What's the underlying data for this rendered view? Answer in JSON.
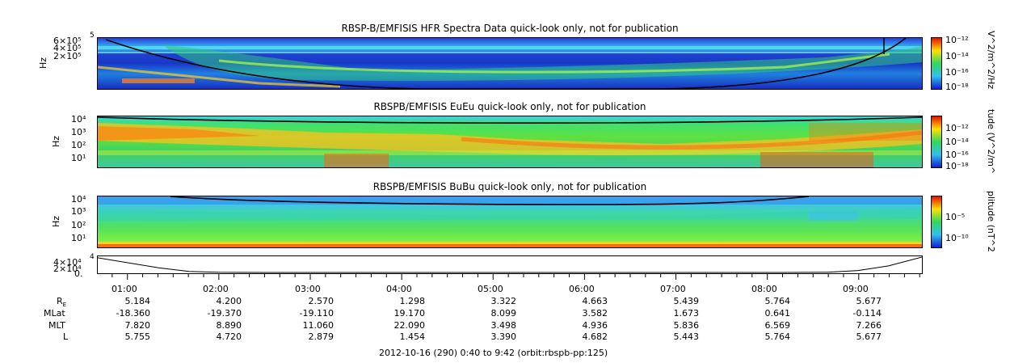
{
  "panels": [
    {
      "title": "RBSP-B/EMFISIS  HFR Spectra Data quick-look only, not for publication",
      "ylabel": "Hz",
      "yticks": [
        "6×10⁵",
        "4×10⁵",
        "2×10⁵"
      ],
      "yticks_top": "5",
      "colorbar_label": "V^2/m^2/Hz",
      "colorbar_ticks": [
        "10⁻¹²",
        "10⁻¹⁴",
        "10⁻¹⁶",
        "10⁻¹⁸"
      ]
    },
    {
      "title": "RBSPB/EMFISIS  EuEu quick-look only, not for publication",
      "ylabel": "Hz",
      "yticks": [
        "10⁴",
        "10³",
        "10²",
        "10¹"
      ],
      "colorbar_label": "tude (V^2/m^",
      "colorbar_ticks": [
        "10⁻¹²",
        "10⁻¹⁴",
        "10⁻¹⁶",
        "10⁻¹⁸"
      ]
    },
    {
      "title": "RBSPB/EMFISIS  BuBu quick-look only, not for publication",
      "ylabel": "Hz",
      "yticks": [
        "10⁴",
        "10³",
        "10²",
        "10¹"
      ],
      "colorbar_label": "plitude (nT^2",
      "colorbar_ticks": [
        "10⁻⁵",
        "10⁻¹⁰"
      ]
    },
    {
      "title": "",
      "ylabel": "",
      "yticks": [
        "4×10⁴",
        "2×10⁴",
        "0."
      ],
      "yticks_top": "4"
    }
  ],
  "ephemeris": {
    "times": [
      "01:00",
      "02:00",
      "03:00",
      "04:00",
      "05:00",
      "06:00",
      "07:00",
      "08:00",
      "09:00"
    ],
    "rows": [
      {
        "label": "R",
        "label_sub": "E",
        "values": [
          "5.184",
          "4.200",
          "2.570",
          "1.298",
          "3.322",
          "4.663",
          "5.439",
          "5.764",
          "5.677"
        ]
      },
      {
        "label": "MLat",
        "values": [
          "-18.360",
          "-19.370",
          "-19.110",
          "19.170",
          "8.099",
          "3.582",
          "1.673",
          "0.641",
          "-0.114"
        ]
      },
      {
        "label": "MLT",
        "values": [
          "7.820",
          "8.890",
          "11.060",
          "22.090",
          "3.498",
          "4.936",
          "5.836",
          "6.569",
          "7.266"
        ]
      },
      {
        "label": "L",
        "values": [
          "5.755",
          "4.720",
          "2.879",
          "1.454",
          "3.390",
          "4.682",
          "5.443",
          "5.764",
          "5.677"
        ]
      }
    ]
  },
  "footer": "2012-10-16 (290) 0:40 to 9:42 (orbit:rbspb-pp:125)",
  "chart_data": [
    {
      "type": "heatmap",
      "title": "RBSP-B/EMFISIS  HFR Spectra Data quick-look only, not for publication",
      "xlabel": "",
      "ylabel": "Hz",
      "x_range": [
        "00:40",
        "09:42"
      ],
      "colorbar": {
        "label": "V^2/m^2/Hz",
        "range": [
          1e-18,
          1e-12
        ],
        "log": true
      }
    },
    {
      "type": "heatmap",
      "title": "RBSPB/EMFISIS  EuEu quick-look only, not for publication",
      "xlabel": "",
      "ylabel": "Hz",
      "y_log": true,
      "x_range": [
        "00:40",
        "09:42"
      ],
      "colorbar": {
        "label": "tude (V^2/m^",
        "range": [
          1e-18,
          1e-12
        ],
        "log": true
      }
    },
    {
      "type": "heatmap",
      "title": "RBSPB/EMFISIS  BuBu quick-look only, not for publication",
      "xlabel": "",
      "ylabel": "Hz",
      "y_log": true,
      "x_range": [
        "00:40",
        "09:42"
      ],
      "colorbar": {
        "label": "plitude (nT^2",
        "range": [
          1e-10,
          1e-05
        ],
        "log": true
      }
    },
    {
      "type": "line",
      "title": "",
      "xlabel": "",
      "ylabel": "",
      "ylim": [
        0,
        40000
      ],
      "x": [
        "00:40",
        "01:20",
        "01:40",
        "02:00",
        "02:30",
        "03:00",
        "04:00",
        "05:00",
        "06:00",
        "07:00",
        "07:40",
        "08:10",
        "08:40",
        "09:00",
        "09:20",
        "09:42"
      ],
      "values": [
        38000,
        12000,
        2500,
        500,
        100,
        0,
        0,
        0,
        0,
        0,
        0,
        0,
        600,
        5000,
        17000,
        40000
      ]
    }
  ],
  "colors": {
    "low": "#1020d0",
    "mid": "#20d060",
    "high": "#ffe000",
    "peak": "#e81000",
    "cutoff_line": "#000000"
  }
}
